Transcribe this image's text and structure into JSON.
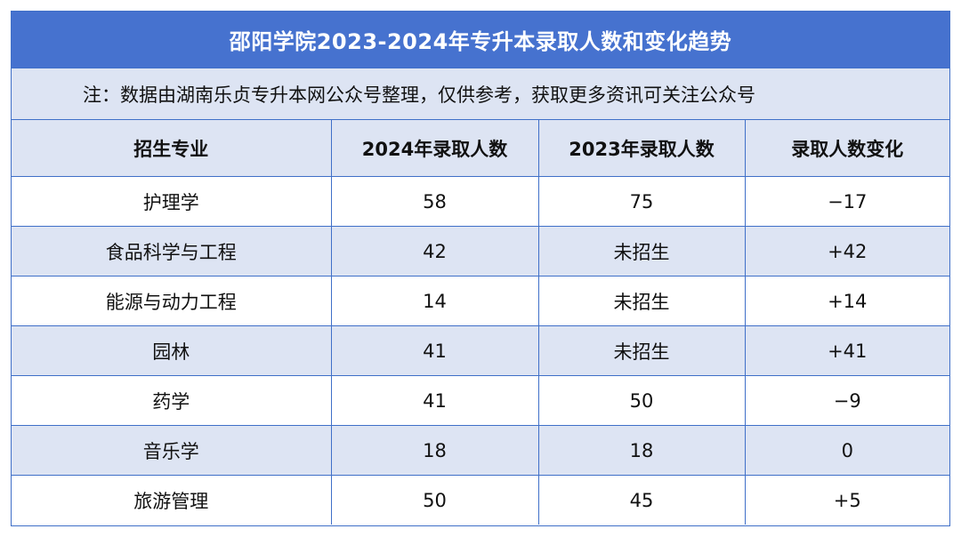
{
  "title": "邵阳学院2023-2024年专升本录取人数和变化趋势",
  "note": "注：数据由湖南乐贞专升本网公众号整理，仅供参考，获取更多资讯可关注公众号",
  "headers": [
    "招生专业",
    "2024年录取人数",
    "2023年录取人数",
    "录取人数变化"
  ],
  "rows": [
    {
      "major": "护理学",
      "y2024": "58",
      "y2023": "75",
      "change": "−17"
    },
    {
      "major": "食品科学与工程",
      "y2024": "42",
      "y2023": "未招生",
      "change": "+42"
    },
    {
      "major": "能源与动力工程",
      "y2024": "14",
      "y2023": "未招生",
      "change": "+14"
    },
    {
      "major": "园林",
      "y2024": "41",
      "y2023": "未招生",
      "change": "+41"
    },
    {
      "major": "药学",
      "y2024": "41",
      "y2023": "50",
      "change": "−9"
    },
    {
      "major": "音乐学",
      "y2024": "18",
      "y2023": "18",
      "change": "0"
    },
    {
      "major": "旅游管理",
      "y2024": "50",
      "y2023": "45",
      "change": "+5"
    }
  ],
  "colors": {
    "title_bg": "#4672cf",
    "band_bg": "#dde4f3",
    "border": "#3f6fc8"
  }
}
